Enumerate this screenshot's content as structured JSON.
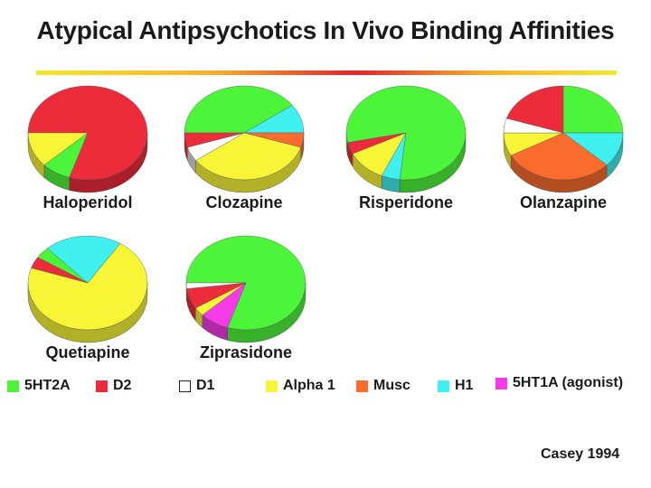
{
  "title": "Atypical Antipsychotics In Vivo Binding Affinities",
  "source": "Casey 1994",
  "colors": {
    "5HT2A": "#4cf53a",
    "D2": "#ec2b3b",
    "D1": "#ffffff",
    "Alpha 1": "#f7f535",
    "Musc": "#f96c2e",
    "H1": "#3ff0ee",
    "5HT1A (agonist)": "#f53be8"
  },
  "legend": [
    {
      "key": "5HT2A",
      "label": "5HT2A"
    },
    {
      "key": "D2",
      "label": "D2"
    },
    {
      "key": "D1",
      "label": "D1"
    },
    {
      "key": "Alpha 1",
      "label": "Alpha 1"
    },
    {
      "key": "Musc",
      "label": "Musc"
    },
    {
      "key": "H1",
      "label": "H1"
    },
    {
      "key": "5HT1A (agonist)",
      "label": "5HT1A (agonist)"
    }
  ],
  "chart_data": [
    {
      "type": "pie",
      "title": "Haloperidol",
      "slices": [
        {
          "label": "D2",
          "value": 80
        },
        {
          "label": "5HT2A",
          "value": 8
        },
        {
          "label": "Alpha 1",
          "value": 12
        }
      ]
    },
    {
      "type": "pie",
      "title": "Clozapine",
      "slices": [
        {
          "label": "5HT2A",
          "value": 40
        },
        {
          "label": "H1",
          "value": 10
        },
        {
          "label": "Musc",
          "value": 5
        },
        {
          "label": "Alpha 1",
          "value": 35
        },
        {
          "label": "D1",
          "value": 5
        },
        {
          "label": "D2",
          "value": 5
        }
      ]
    },
    {
      "type": "pie",
      "title": "Risperidone",
      "slices": [
        {
          "label": "5HT2A",
          "value": 80
        },
        {
          "label": "H1",
          "value": 5
        },
        {
          "label": "Alpha 1",
          "value": 11
        },
        {
          "label": "D2",
          "value": 4
        }
      ]
    },
    {
      "type": "pie",
      "title": "Olanzapine",
      "slices": [
        {
          "label": "5HT2A",
          "value": 25
        },
        {
          "label": "H1",
          "value": 12
        },
        {
          "label": "Musc",
          "value": 30
        },
        {
          "label": "Alpha 1",
          "value": 8
        },
        {
          "label": "D1",
          "value": 5
        },
        {
          "label": "D2",
          "value": 20
        }
      ]
    },
    {
      "type": "pie",
      "title": "Quetiapine",
      "slices": [
        {
          "label": "Alpha 1",
          "value": 71
        },
        {
          "label": "D2",
          "value": 4
        },
        {
          "label": "5HT2A",
          "value": 4
        },
        {
          "label": "H1",
          "value": 21
        }
      ]
    },
    {
      "type": "pie",
      "title": "Ziprasidone",
      "slices": [
        {
          "label": "5HT2A",
          "value": 80
        },
        {
          "label": "5HT1A (agonist)",
          "value": 8
        },
        {
          "label": "Alpha 1",
          "value": 3
        },
        {
          "label": "D2",
          "value": 7
        },
        {
          "label": "D1",
          "value": 2
        }
      ]
    }
  ]
}
